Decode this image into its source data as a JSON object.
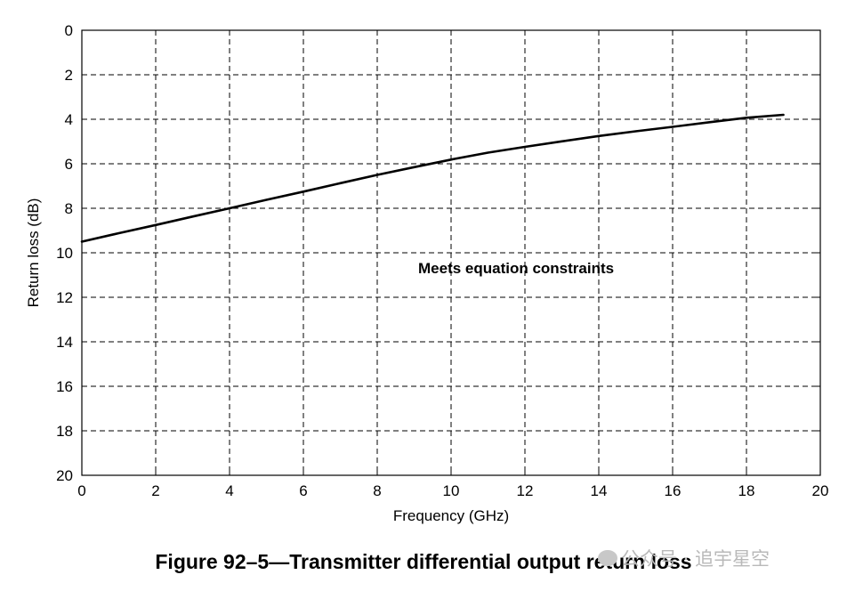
{
  "chart_data": {
    "type": "line",
    "title": "",
    "xlabel": "Frequency (GHz)",
    "ylabel": "Return loss (dB)",
    "xlim": [
      0,
      20
    ],
    "ylim": [
      0,
      20
    ],
    "y_inverted": true,
    "grid": true,
    "grid_style": "dashed",
    "x_ticks": [
      "0",
      "2",
      "4",
      "6",
      "8",
      "10",
      "12",
      "14",
      "16",
      "18",
      "20"
    ],
    "y_ticks": [
      "0",
      "2",
      "4",
      "6",
      "8",
      "10",
      "12",
      "14",
      "16",
      "18",
      "20"
    ],
    "annotation": "Meets equation constraints",
    "series": [
      {
        "x": [
          0,
          1,
          2,
          3,
          4,
          5,
          6,
          7,
          8,
          9,
          10,
          11,
          12,
          13,
          14,
          15,
          16,
          17,
          18,
          19
        ],
        "y": [
          9.5,
          9.12,
          8.75,
          8.37,
          8.0,
          7.62,
          7.25,
          6.87,
          6.5,
          6.15,
          5.81,
          5.5,
          5.24,
          4.99,
          4.75,
          4.54,
          4.34,
          4.13,
          3.93,
          3.8
        ],
        "color": "#000000"
      }
    ]
  },
  "caption": "Figure 92–5—Transmitter differential output return loss",
  "watermark": "公众号 · 追宇星空"
}
